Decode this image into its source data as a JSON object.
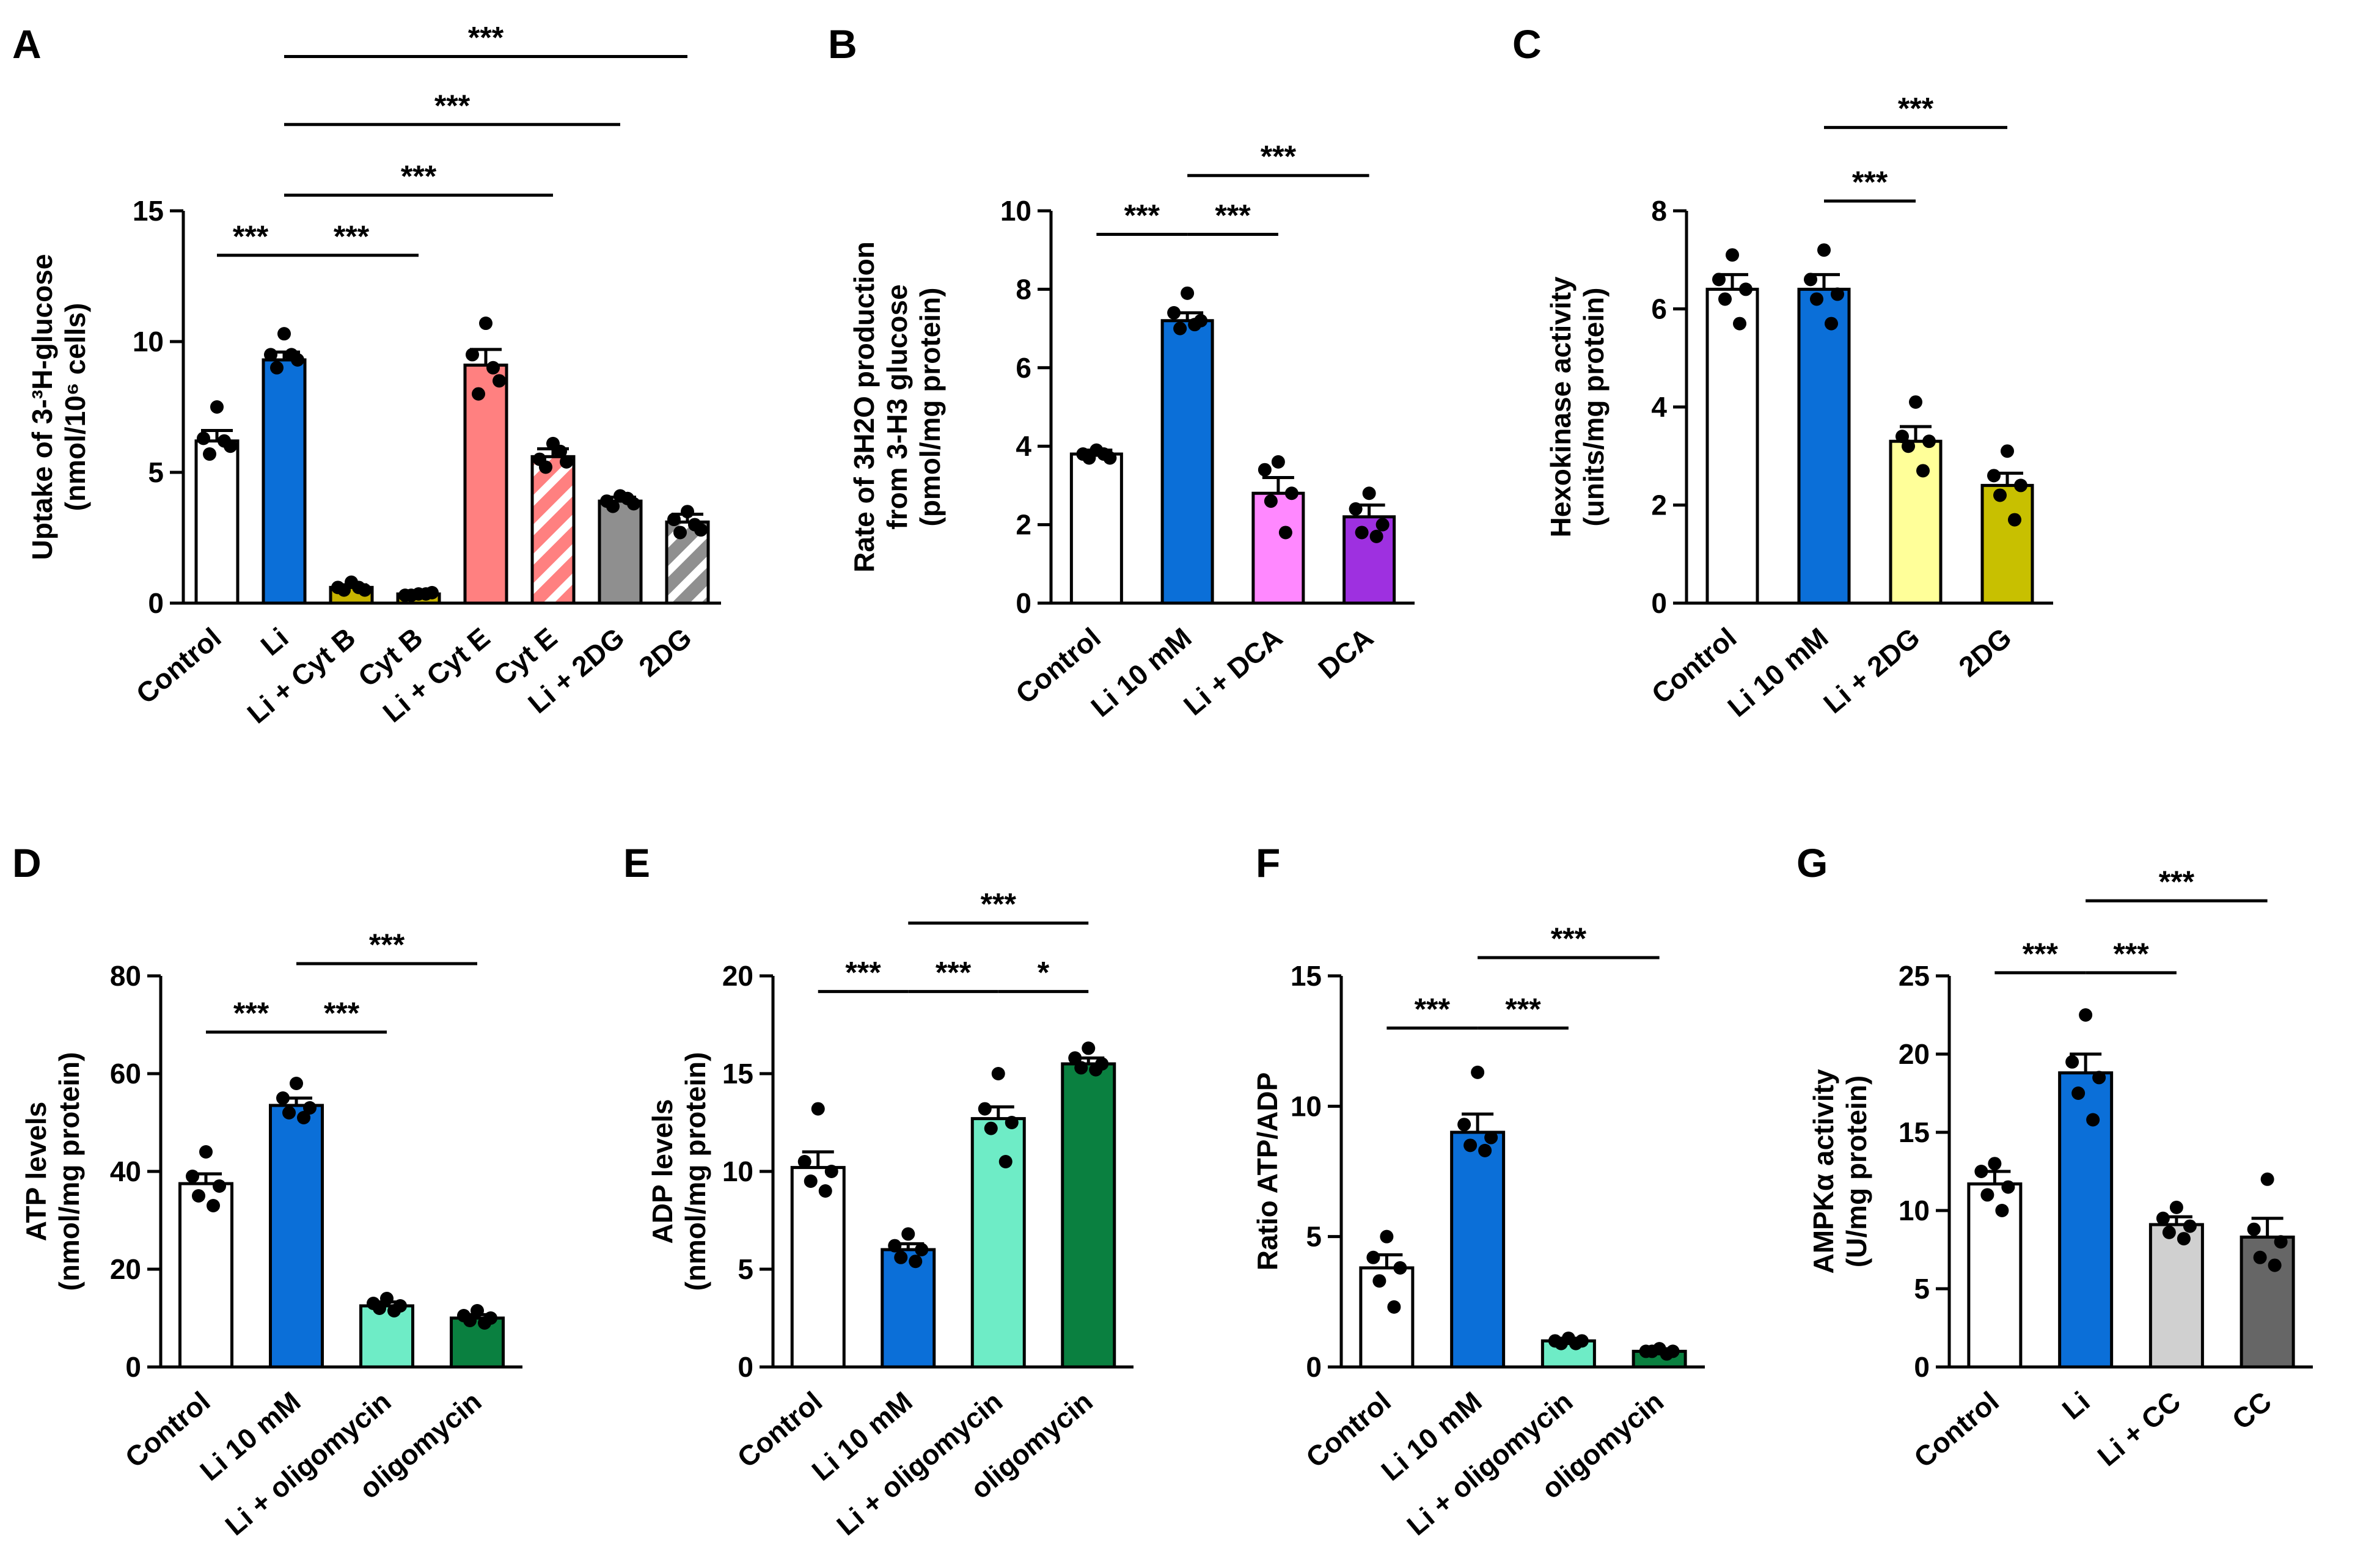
{
  "chart_data": [
    {
      "panel": "A",
      "type": "bar",
      "ylabel_lines": [
        "Uptake of 3-³H-glucose",
        "(nmol/10⁶ cells)"
      ],
      "yticks": [
        0,
        5,
        10,
        15
      ],
      "ylim": [
        0,
        15
      ],
      "categories": [
        "Control",
        "Li",
        "Li + Cyt B",
        "Cyt B",
        "Li + Cyt E",
        "Cyt E",
        "Li + 2DG",
        "2DG"
      ],
      "values": [
        6.2,
        9.3,
        0.6,
        0.35,
        9.1,
        5.6,
        3.9,
        3.1
      ],
      "sem": [
        0.4,
        0.3,
        0.1,
        0.05,
        0.6,
        0.3,
        0.15,
        0.3
      ],
      "points": [
        [
          7.5,
          6.3,
          6.0,
          5.7,
          6.2
        ],
        [
          10.3,
          9.5,
          9.3,
          9.0,
          9.5
        ],
        [
          0.8,
          0.6,
          0.5,
          0.5,
          0.6
        ],
        [
          0.35,
          0.3,
          0.4,
          0.3,
          0.35
        ],
        [
          10.7,
          9.5,
          8.5,
          8.0,
          9.0
        ],
        [
          6.1,
          5.5,
          5.4,
          5.2,
          5.8
        ],
        [
          4.1,
          3.9,
          3.8,
          3.7,
          4.0
        ],
        [
          3.5,
          3.2,
          2.8,
          2.7,
          3.0
        ]
      ],
      "colors": [
        "#ffffff",
        "#0b6fd8",
        "#c8b400",
        "#c8b400",
        "#ff8080",
        "#ff8080",
        "#8f8f8f",
        "#8f8f8f"
      ],
      "hatched": [
        false,
        false,
        false,
        false,
        false,
        true,
        false,
        true
      ],
      "significance": [
        {
          "from": 0,
          "to": 1,
          "label": "***",
          "y": 13.3
        },
        {
          "from": 1,
          "to": 3,
          "label": "***",
          "y": 13.3
        },
        {
          "from": 1,
          "to": 5,
          "label": "***",
          "y": 15.6
        },
        {
          "from": 1,
          "to": 6,
          "label": "***",
          "y": 18.3
        },
        {
          "from": 1,
          "to": 7,
          "label": "***",
          "y": 20.9
        }
      ]
    },
    {
      "panel": "B",
      "type": "bar",
      "ylabel_lines": [
        "Rate of 3H2O production",
        "from 3-H3 glucose",
        "(pmol/mg protein)"
      ],
      "yticks": [
        0,
        2,
        4,
        6,
        8,
        10
      ],
      "ylim": [
        0,
        10
      ],
      "categories": [
        "Control",
        "Li 10 mM",
        "Li + DCA",
        "DCA"
      ],
      "values": [
        3.8,
        7.2,
        2.8,
        2.2
      ],
      "sem": [
        0.1,
        0.2,
        0.4,
        0.3
      ],
      "points": [
        [
          3.9,
          3.8,
          3.7,
          3.7,
          3.8
        ],
        [
          7.9,
          7.4,
          7.2,
          7.0,
          7.1
        ],
        [
          3.6,
          3.4,
          2.8,
          2.6,
          1.8
        ],
        [
          2.8,
          2.4,
          2.0,
          1.8,
          1.7
        ]
      ],
      "colors": [
        "#ffffff",
        "#0b6fd8",
        "#ff88ff",
        "#9e30e0"
      ],
      "hatched": [
        false,
        false,
        false,
        false
      ],
      "significance": [
        {
          "from": 0,
          "to": 1,
          "label": "***",
          "y": 9.4
        },
        {
          "from": 1,
          "to": 2,
          "label": "***",
          "y": 9.4
        },
        {
          "from": 1,
          "to": 3,
          "label": "***",
          "y": 10.9
        }
      ]
    },
    {
      "panel": "C",
      "type": "bar",
      "ylabel_lines": [
        "Hexokinase activity",
        "(units/mg protein)"
      ],
      "yticks": [
        0,
        2,
        4,
        6,
        8
      ],
      "ylim": [
        0,
        8
      ],
      "categories": [
        "Control",
        "Li 10 mM",
        "Li + 2DG",
        "2DG"
      ],
      "values": [
        6.4,
        6.4,
        3.3,
        2.4
      ],
      "sem": [
        0.3,
        0.3,
        0.3,
        0.25
      ],
      "points": [
        [
          7.1,
          6.6,
          6.4,
          6.2,
          5.7
        ],
        [
          7.2,
          6.6,
          6.3,
          6.2,
          5.7
        ],
        [
          4.1,
          3.4,
          3.3,
          3.2,
          2.7
        ],
        [
          3.1,
          2.6,
          2.4,
          2.2,
          1.7
        ]
      ],
      "colors": [
        "#ffffff",
        "#0b6fd8",
        "#ffff99",
        "#c8c000"
      ],
      "hatched": [
        false,
        false,
        false,
        false
      ],
      "significance": [
        {
          "from": 1,
          "to": 2,
          "label": "***",
          "y": 8.2
        },
        {
          "from": 1,
          "to": 3,
          "label": "***",
          "y": 9.7
        }
      ]
    },
    {
      "panel": "D",
      "type": "bar",
      "ylabel_lines": [
        "ATP levels",
        "(nmol/mg protein)"
      ],
      "yticks": [
        0,
        20,
        40,
        60,
        80
      ],
      "ylim": [
        0,
        80
      ],
      "categories": [
        "Control",
        "Li 10 mM",
        "Li + oligomycin",
        "oligomycin"
      ],
      "values": [
        37.5,
        53.5,
        12.5,
        10.0
      ],
      "sem": [
        2.0,
        1.5,
        0.8,
        0.7
      ],
      "points": [
        [
          44,
          39,
          37,
          35,
          33
        ],
        [
          58,
          55,
          53,
          52,
          51
        ],
        [
          14,
          13,
          12.5,
          12,
          11.5
        ],
        [
          11.5,
          10.5,
          10,
          9.5,
          9
        ]
      ],
      "colors": [
        "#ffffff",
        "#0b6fd8",
        "#6eecc6",
        "#0a8040"
      ],
      "hatched": [
        false,
        false,
        false,
        false
      ],
      "significance": [
        {
          "from": 0,
          "to": 1,
          "label": "***",
          "y": 68.5
        },
        {
          "from": 1,
          "to": 2,
          "label": "***",
          "y": 68.5
        },
        {
          "from": 1,
          "to": 3,
          "label": "***",
          "y": 82.5
        }
      ]
    },
    {
      "panel": "E",
      "type": "bar",
      "ylabel_lines": [
        "ADP levels",
        "(nmol/mg protein)"
      ],
      "yticks": [
        0,
        5,
        10,
        15,
        20
      ],
      "ylim": [
        0,
        20
      ],
      "categories": [
        "Control",
        "Li 10 mM",
        "Li + oligomycin",
        "oligomycin"
      ],
      "values": [
        10.2,
        6.0,
        12.7,
        15.5
      ],
      "sem": [
        0.8,
        0.3,
        0.6,
        0.3
      ],
      "points": [
        [
          13.2,
          10.5,
          10.0,
          9.5,
          9.0
        ],
        [
          6.8,
          6.2,
          6.0,
          5.6,
          5.4
        ],
        [
          15.0,
          13.2,
          12.5,
          12.2,
          10.5
        ],
        [
          16.3,
          15.8,
          15.5,
          15.3,
          15.2
        ]
      ],
      "colors": [
        "#ffffff",
        "#0b6fd8",
        "#6eecc6",
        "#0a8040"
      ],
      "hatched": [
        false,
        false,
        false,
        false
      ],
      "significance": [
        {
          "from": 0,
          "to": 1,
          "label": "***",
          "y": 19.2
        },
        {
          "from": 1,
          "to": 2,
          "label": "***",
          "y": 19.2
        },
        {
          "from": 2,
          "to": 3,
          "label": "*",
          "y": 19.2
        },
        {
          "from": 1,
          "to": 3,
          "label": "***",
          "y": 22.7
        }
      ]
    },
    {
      "panel": "F",
      "type": "bar",
      "ylabel_lines": [
        "Ratio ATP/ADP"
      ],
      "yticks": [
        0,
        5,
        10,
        15
      ],
      "ylim": [
        0,
        15
      ],
      "categories": [
        "Control",
        "Li 10 mM",
        "Li + oligomycin",
        "oligomycin"
      ],
      "values": [
        3.8,
        9.0,
        1.0,
        0.6
      ],
      "sem": [
        0.5,
        0.7,
        0.1,
        0.05
      ],
      "points": [
        [
          5.0,
          4.2,
          3.8,
          3.3,
          2.3
        ],
        [
          11.3,
          9.3,
          8.8,
          8.5,
          8.3
        ],
        [
          1.1,
          1.0,
          1.0,
          0.9,
          0.9
        ],
        [
          0.7,
          0.6,
          0.6,
          0.6,
          0.5
        ]
      ],
      "colors": [
        "#ffffff",
        "#0b6fd8",
        "#6eecc6",
        "#0a8040"
      ],
      "hatched": [
        false,
        false,
        false,
        false
      ],
      "significance": [
        {
          "from": 0,
          "to": 1,
          "label": "***",
          "y": 13.0
        },
        {
          "from": 1,
          "to": 2,
          "label": "***",
          "y": 13.0
        },
        {
          "from": 1,
          "to": 3,
          "label": "***",
          "y": 15.7
        }
      ]
    },
    {
      "panel": "G",
      "type": "bar",
      "ylabel_lines": [
        "AMPKα activity",
        "(U/mg  protein)"
      ],
      "yticks": [
        0,
        5,
        10,
        15,
        20,
        25
      ],
      "ylim": [
        0,
        25
      ],
      "categories": [
        "Control",
        "Li",
        "Li + CC",
        "CC"
      ],
      "values": [
        11.7,
        18.8,
        9.1,
        8.3
      ],
      "sem": [
        0.8,
        1.2,
        0.5,
        1.2
      ],
      "points": [
        [
          13.0,
          12.5,
          11.5,
          11.0,
          10.0
        ],
        [
          22.5,
          19.5,
          18.5,
          17.5,
          15.8
        ],
        [
          10.2,
          9.5,
          9.0,
          8.6,
          8.2
        ],
        [
          12.0,
          8.8,
          8.0,
          7.0,
          6.5
        ]
      ],
      "colors": [
        "#ffffff",
        "#0b6fd8",
        "#d0d0d0",
        "#666666"
      ],
      "hatched": [
        false,
        false,
        false,
        false
      ],
      "significance": [
        {
          "from": 0,
          "to": 1,
          "label": "***",
          "y": 25.2
        },
        {
          "from": 1,
          "to": 2,
          "label": "***",
          "y": 25.2
        },
        {
          "from": 1,
          "to": 3,
          "label": "***",
          "y": 29.8
        }
      ]
    }
  ]
}
